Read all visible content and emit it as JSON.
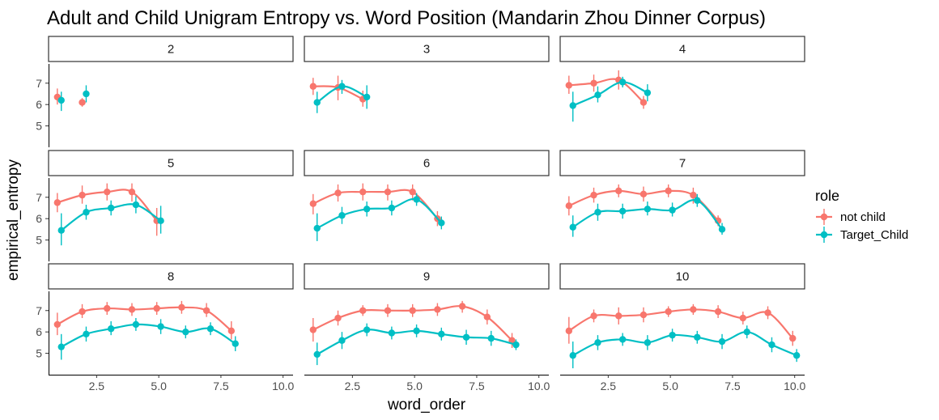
{
  "chart_data": {
    "type": "line",
    "title": "Adult and Child Unigram Entropy vs. Word Position (Mandarin Zhou Dinner Corpus)",
    "xlabel": "word_order",
    "ylabel": "empirical_entropy",
    "facet_layout": "3 columns x 3 rows, shared axes",
    "xlim": [
      0.6,
      10.4
    ],
    "ylim": [
      4.0,
      7.9
    ],
    "x_ticks": [
      2.5,
      5.0,
      7.5,
      10.0
    ],
    "x_tick_labels": [
      "2.5",
      "5.0",
      "7.5",
      "10.0"
    ],
    "y_ticks": [
      5,
      6,
      7
    ],
    "y_tick_labels": [
      "5",
      "6",
      "7"
    ],
    "grid": false,
    "legend": {
      "title": "role",
      "position": "right",
      "entries": [
        {
          "label": "not child",
          "color": "#F8766D"
        },
        {
          "label": "Target_Child",
          "color": "#00BFC4"
        }
      ]
    },
    "series_colors": {
      "not child": "#F8766D",
      "Target_Child": "#00BFC4"
    },
    "series_x_offset": {
      "not child": -0.08,
      "Target_Child": 0.08
    },
    "panels": [
      {
        "label": "2",
        "series": [
          {
            "name": "not child",
            "x": [
              1,
              2
            ],
            "y": [
              6.35,
              6.1
            ],
            "lo": [
              6.0,
              5.9
            ],
            "hi": [
              6.75,
              6.3
            ],
            "smooth": false
          },
          {
            "name": "Target_Child",
            "x": [
              1,
              2
            ],
            "y": [
              6.2,
              6.5
            ],
            "lo": [
              5.7,
              6.1
            ],
            "hi": [
              6.6,
              6.9
            ],
            "smooth": false
          }
        ]
      },
      {
        "label": "3",
        "series": [
          {
            "name": "not child",
            "x": [
              1,
              2,
              3
            ],
            "y": [
              6.85,
              6.8,
              6.25
            ],
            "lo": [
              6.45,
              6.2,
              5.9
            ],
            "hi": [
              7.25,
              7.35,
              6.65
            ],
            "smooth": true
          },
          {
            "name": "Target_Child",
            "x": [
              1,
              2,
              3
            ],
            "y": [
              6.1,
              6.85,
              6.35
            ],
            "lo": [
              5.6,
              6.5,
              5.8
            ],
            "hi": [
              6.6,
              7.15,
              6.9
            ],
            "smooth": true
          }
        ]
      },
      {
        "label": "4",
        "series": [
          {
            "name": "not child",
            "x": [
              1,
              2,
              3,
              4
            ],
            "y": [
              6.9,
              7.0,
              7.15,
              6.1
            ],
            "lo": [
              6.5,
              6.6,
              6.7,
              5.8
            ],
            "hi": [
              7.35,
              7.4,
              7.6,
              6.4
            ],
            "smooth": true
          },
          {
            "name": "Target_Child",
            "x": [
              1,
              2,
              3,
              4
            ],
            "y": [
              5.95,
              6.45,
              7.05,
              6.55
            ],
            "lo": [
              5.2,
              6.1,
              6.8,
              6.15
            ],
            "hi": [
              6.6,
              6.85,
              7.3,
              6.95
            ],
            "smooth": true
          }
        ]
      },
      {
        "label": "5",
        "series": [
          {
            "name": "not child",
            "x": [
              1,
              2,
              3,
              4,
              5
            ],
            "y": [
              6.75,
              7.1,
              7.25,
              7.25,
              5.9
            ],
            "lo": [
              6.3,
              6.7,
              6.85,
              6.8,
              5.2
            ],
            "hi": [
              7.2,
              7.55,
              7.65,
              7.65,
              6.5
            ],
            "smooth": true
          },
          {
            "name": "Target_Child",
            "x": [
              1,
              2,
              3,
              4,
              5
            ],
            "y": [
              5.45,
              6.3,
              6.5,
              6.65,
              5.9
            ],
            "lo": [
              4.75,
              5.95,
              6.15,
              6.25,
              5.3
            ],
            "hi": [
              6.25,
              6.65,
              6.85,
              7.05,
              6.6
            ],
            "smooth": true
          }
        ]
      },
      {
        "label": "6",
        "series": [
          {
            "name": "not child",
            "x": [
              1,
              2,
              3,
              4,
              5,
              6
            ],
            "y": [
              6.7,
              7.2,
              7.25,
              7.25,
              7.25,
              6.0
            ],
            "lo": [
              6.2,
              6.8,
              6.85,
              6.85,
              6.85,
              5.65
            ],
            "hi": [
              7.15,
              7.6,
              7.65,
              7.6,
              7.6,
              6.35
            ],
            "smooth": true
          },
          {
            "name": "Target_Child",
            "x": [
              1,
              2,
              3,
              4,
              5,
              6
            ],
            "y": [
              5.55,
              6.15,
              6.45,
              6.5,
              6.9,
              5.8
            ],
            "lo": [
              4.95,
              5.75,
              6.1,
              6.15,
              6.6,
              5.5
            ],
            "hi": [
              6.25,
              6.55,
              6.8,
              6.85,
              7.2,
              6.1
            ],
            "smooth": true
          }
        ]
      },
      {
        "label": "7",
        "series": [
          {
            "name": "not child",
            "x": [
              1,
              2,
              3,
              4,
              5,
              6,
              7
            ],
            "y": [
              6.6,
              7.1,
              7.3,
              7.15,
              7.3,
              7.1,
              5.9
            ],
            "lo": [
              6.15,
              6.75,
              7.0,
              6.8,
              7.0,
              6.7,
              5.65
            ],
            "hi": [
              7.05,
              7.45,
              7.6,
              7.5,
              7.6,
              7.45,
              6.15
            ],
            "smooth": true
          },
          {
            "name": "Target_Child",
            "x": [
              1,
              2,
              3,
              4,
              5,
              6,
              7
            ],
            "y": [
              5.6,
              6.3,
              6.35,
              6.45,
              6.4,
              6.85,
              5.5
            ],
            "lo": [
              5.15,
              5.9,
              6.0,
              6.15,
              6.1,
              6.55,
              5.25
            ],
            "hi": [
              6.15,
              6.7,
              6.7,
              6.8,
              6.75,
              7.15,
              5.8
            ],
            "smooth": true
          }
        ]
      },
      {
        "label": "8",
        "series": [
          {
            "name": "not child",
            "x": [
              1,
              2,
              3,
              4,
              5,
              6,
              7,
              8
            ],
            "y": [
              6.35,
              6.95,
              7.1,
              7.05,
              7.1,
              7.15,
              7.0,
              6.05
            ],
            "lo": [
              5.85,
              6.65,
              6.8,
              6.75,
              6.8,
              6.85,
              6.7,
              5.65
            ],
            "hi": [
              6.9,
              7.3,
              7.4,
              7.35,
              7.4,
              7.45,
              7.35,
              6.5
            ],
            "smooth": true
          },
          {
            "name": "Target_Child",
            "x": [
              1,
              2,
              3,
              4,
              5,
              6,
              7,
              8
            ],
            "y": [
              5.3,
              5.9,
              6.15,
              6.35,
              6.25,
              6.0,
              6.15,
              5.45
            ],
            "lo": [
              4.7,
              5.55,
              5.85,
              6.05,
              5.9,
              5.7,
              5.85,
              5.1
            ],
            "hi": [
              5.9,
              6.25,
              6.5,
              6.65,
              6.6,
              6.3,
              6.45,
              5.8
            ],
            "smooth": true
          }
        ]
      },
      {
        "label": "9",
        "series": [
          {
            "name": "not child",
            "x": [
              1,
              2,
              3,
              4,
              5,
              6,
              7,
              8,
              9
            ],
            "y": [
              6.1,
              6.65,
              7.0,
              7.0,
              7.0,
              7.05,
              7.2,
              6.7,
              5.6
            ],
            "lo": [
              5.55,
              6.3,
              6.75,
              6.7,
              6.7,
              6.75,
              6.9,
              6.35,
              5.25
            ],
            "hi": [
              6.65,
              7.0,
              7.25,
              7.3,
              7.3,
              7.35,
              7.45,
              7.05,
              5.95
            ],
            "smooth": true
          },
          {
            "name": "Target_Child",
            "x": [
              1,
              2,
              3,
              4,
              5,
              6,
              7,
              8,
              9
            ],
            "y": [
              4.95,
              5.6,
              6.1,
              5.95,
              6.05,
              5.9,
              5.75,
              5.7,
              5.4
            ],
            "lo": [
              4.45,
              5.2,
              5.8,
              5.65,
              5.75,
              5.6,
              5.4,
              5.35,
              5.15
            ],
            "hi": [
              5.5,
              6.0,
              6.4,
              6.25,
              6.35,
              6.2,
              6.1,
              6.05,
              5.65
            ],
            "smooth": true
          }
        ]
      },
      {
        "label": "10",
        "series": [
          {
            "name": "not child",
            "x": [
              1,
              2,
              3,
              4,
              5,
              6,
              7,
              8,
              9,
              10
            ],
            "y": [
              6.05,
              6.75,
              6.75,
              6.8,
              6.95,
              7.05,
              6.95,
              6.65,
              6.9,
              5.7
            ],
            "lo": [
              5.45,
              6.45,
              6.35,
              6.45,
              6.7,
              6.8,
              6.65,
              6.35,
              6.6,
              5.35
            ],
            "hi": [
              6.7,
              7.05,
              7.15,
              7.15,
              7.2,
              7.3,
              7.25,
              6.95,
              7.2,
              6.05
            ],
            "smooth": true
          },
          {
            "name": "Target_Child",
            "x": [
              1,
              2,
              3,
              4,
              5,
              6,
              7,
              8,
              9,
              10
            ],
            "y": [
              4.9,
              5.5,
              5.65,
              5.5,
              5.85,
              5.75,
              5.55,
              6.0,
              5.4,
              4.9
            ],
            "lo": [
              4.3,
              5.15,
              5.35,
              5.15,
              5.55,
              5.45,
              5.2,
              5.7,
              5.05,
              4.6
            ],
            "hi": [
              5.55,
              5.85,
              5.95,
              5.85,
              6.15,
              6.05,
              5.9,
              6.3,
              5.75,
              5.2
            ],
            "smooth": true
          }
        ]
      }
    ]
  }
}
